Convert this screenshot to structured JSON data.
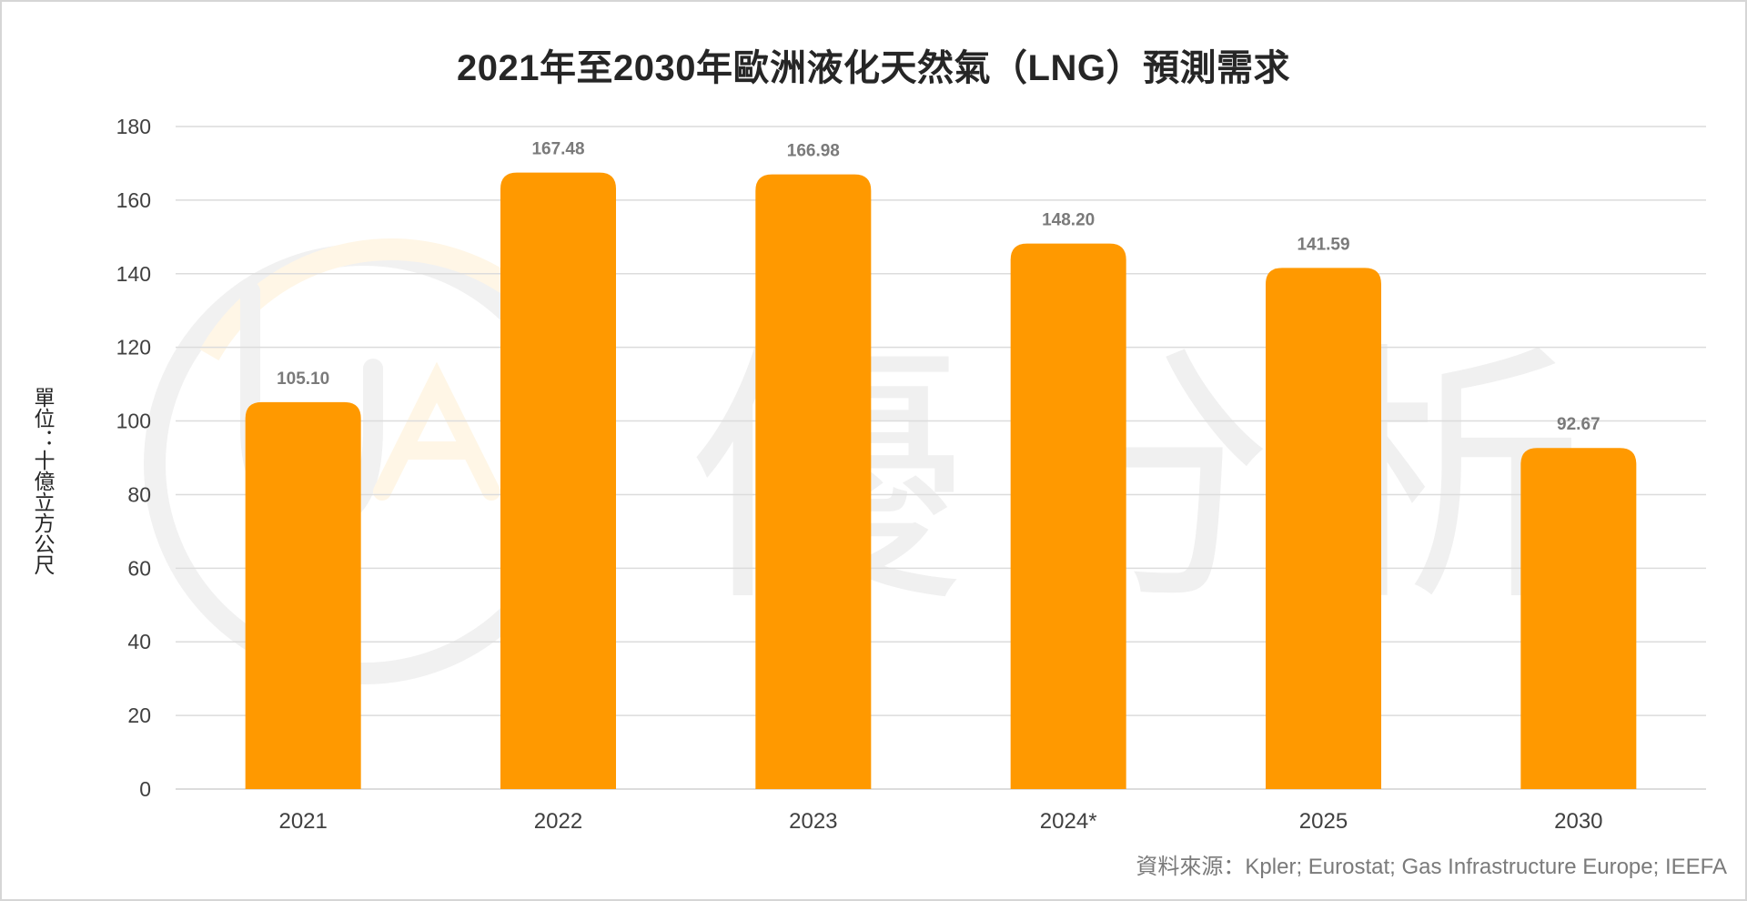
{
  "chart_data": {
    "type": "bar",
    "title": "2021年至2030年歐洲液化天然氣（LNG）預測需求",
    "xlabel": "",
    "ylabel": "單位：十億立方公尺",
    "categories": [
      "2021",
      "2022",
      "2023",
      "2024*",
      "2025",
      "2030"
    ],
    "values": [
      105.1,
      167.48,
      166.98,
      148.2,
      141.59,
      92.67
    ],
    "data_labels": [
      "105.10",
      "167.48",
      "166.98",
      "148.20",
      "141.59",
      "92.67"
    ],
    "ylim": [
      0,
      180
    ],
    "yticks": [
      0,
      20,
      40,
      60,
      80,
      100,
      120,
      140,
      160,
      180
    ],
    "grid": true,
    "legend": "none",
    "bar_color": "#FF9900",
    "source": "資料來源：Kpler; Eurostat; Gas Infrastructure Europe; IEEFA"
  },
  "watermark": {
    "text": "優分析",
    "logo": "UA"
  }
}
